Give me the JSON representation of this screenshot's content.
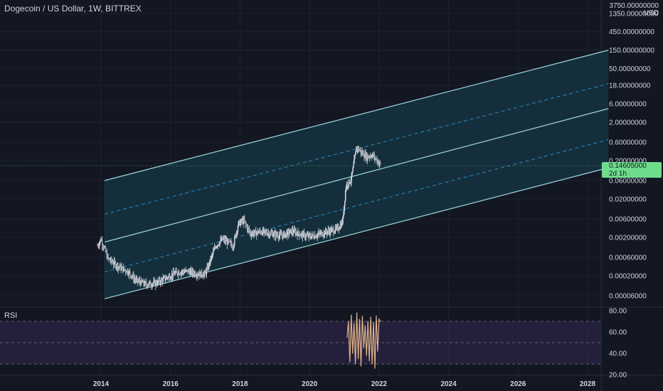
{
  "header": {
    "title": "Dogecoin / US Dollar, 1W, BITTREX",
    "currency": "USD",
    "top_tick": "3750.00000000"
  },
  "price_tag": {
    "value": "0.14605000",
    "countdown": "2d 1h",
    "color": "#6fdc8c"
  },
  "colors": {
    "background": "#131722",
    "channel_line": "#9fd6e0",
    "channel_dashed": "#2d88c9",
    "channel_fill": "#15343f",
    "rsi_line": "#e0b38a",
    "rsi_band": "#3a2c5a",
    "up_candle": "#d1d4dc",
    "down_candle": "#d1d4dc"
  },
  "rsi": {
    "label": "RSI"
  },
  "chart_data": [
    {
      "type": "line",
      "title": "Dogecoin / US Dollar, 1W, BITTREX",
      "scale": "log",
      "y_ticks": [
        "1350.00000000",
        "450.00000000",
        "150.00000000",
        "50.00000000",
        "18.00000000",
        "6.00000000",
        "2.00000000",
        "0.60000000",
        "0.20000000",
        "0.06000000",
        "0.02000000",
        "0.00600000",
        "0.00200000",
        "0.00060000",
        "0.00020000",
        "0.00006000"
      ],
      "x_ticks": [
        "2014",
        "2016",
        "2018",
        "2020",
        "2022",
        "2024",
        "2026",
        "2028"
      ],
      "xlim": [
        2013.5,
        2028.6
      ],
      "ylim": [
        3e-05,
        3750
      ],
      "series": [
        {
          "x": [
            2013.9,
            2014.0,
            2014.2,
            2014.5,
            2014.8,
            2015.0,
            2015.3,
            2015.6,
            2015.9,
            2016.2,
            2016.5,
            2016.8,
            2017.0,
            2017.3,
            2017.5,
            2017.8,
            2017.95,
            2018.1,
            2018.3,
            2018.6,
            2018.9,
            2019.2,
            2019.5,
            2019.8,
            2020.0,
            2020.2,
            2020.5,
            2020.8,
            2020.95,
            2021.05,
            2021.2,
            2021.35,
            2021.5,
            2021.65,
            2021.8,
            2021.95,
            2022.05
          ],
          "y": [
            0.0012,
            0.0018,
            0.00055,
            0.00035,
            0.00025,
            0.00015,
            0.00012,
            0.00013,
            0.00018,
            0.00025,
            0.00026,
            0.00022,
            0.00022,
            0.0012,
            0.0018,
            0.0012,
            0.0045,
            0.0055,
            0.0025,
            0.0028,
            0.0025,
            0.0022,
            0.0029,
            0.0023,
            0.0021,
            0.0023,
            0.0028,
            0.0033,
            0.005,
            0.045,
            0.065,
            0.45,
            0.32,
            0.25,
            0.28,
            0.2,
            0.146
          ]
        }
      ]
    },
    {
      "type": "line",
      "title": "RSI",
      "y_ticks": [
        "80.00",
        "60.00",
        "40.00",
        "20.00"
      ],
      "ylim": [
        18,
        82
      ],
      "bands": [
        30,
        50,
        70
      ],
      "series": [
        {
          "x": [
            2021.08,
            2021.12,
            2021.16,
            2021.2,
            2021.24,
            2021.28,
            2021.32,
            2021.36,
            2021.4,
            2021.44,
            2021.48,
            2021.52,
            2021.56,
            2021.6,
            2021.64,
            2021.68,
            2021.72,
            2021.76,
            2021.8,
            2021.84,
            2021.88,
            2021.92,
            2021.96,
            2022.0,
            2022.04
          ],
          "y": [
            55,
            70,
            32,
            76,
            40,
            68,
            30,
            78,
            35,
            72,
            28,
            75,
            45,
            66,
            38,
            70,
            33,
            74,
            30,
            69,
            26,
            75,
            42,
            72,
            70
          ]
        }
      ]
    }
  ]
}
